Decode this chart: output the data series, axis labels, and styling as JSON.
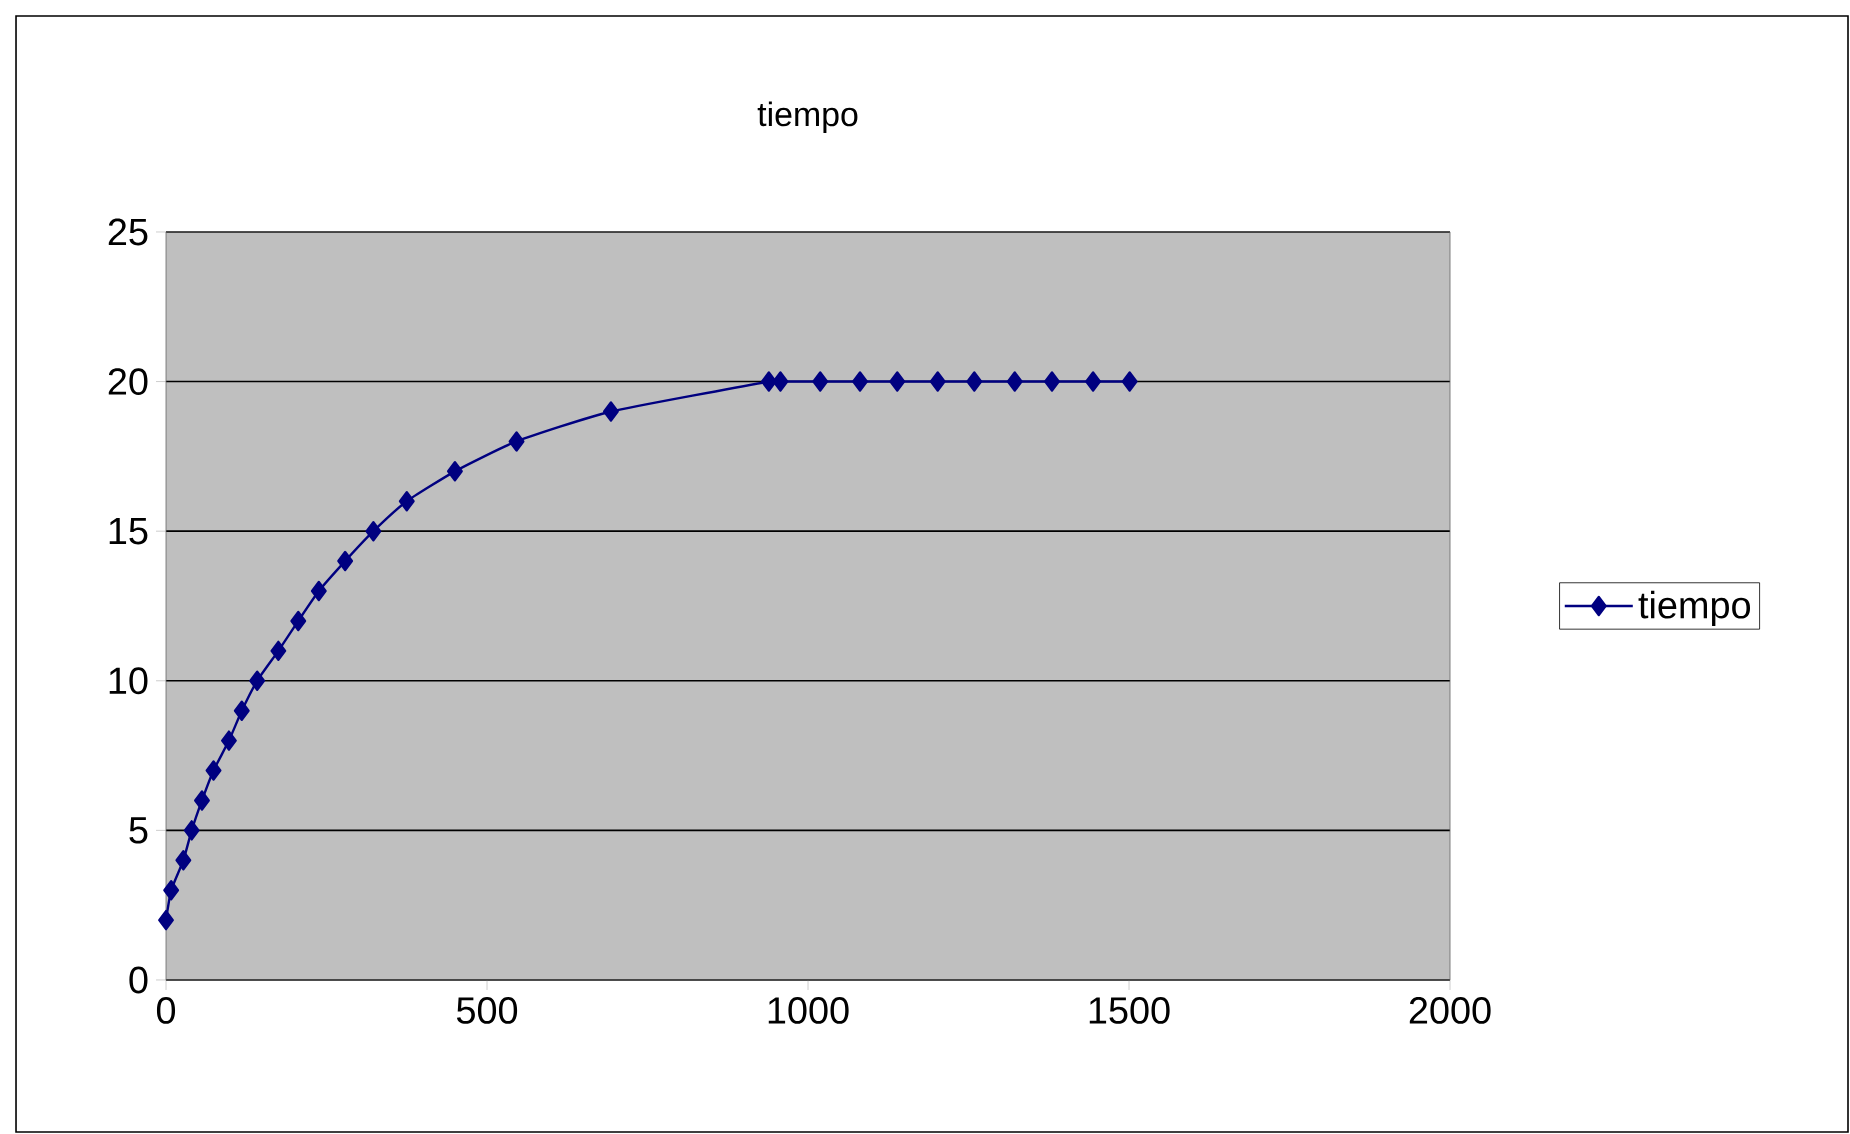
{
  "chart_data": {
    "type": "line",
    "title": "tiempo",
    "x": [
      0,
      8,
      27,
      40,
      56,
      74,
      98,
      118,
      142,
      175,
      206,
      238,
      279,
      323,
      375,
      450,
      546,
      693,
      939,
      957,
      1019,
      1081,
      1139,
      1202,
      1259,
      1322,
      1380,
      1444,
      1501
    ],
    "series": [
      {
        "name": "tiempo",
        "color": "#000080",
        "values": [
          2,
          3,
          4,
          5,
          6,
          7,
          8,
          9,
          10,
          11,
          12,
          13,
          14,
          15,
          16,
          17,
          18,
          19,
          20,
          20,
          20,
          20,
          20,
          20,
          20,
          20,
          20,
          20,
          20
        ]
      }
    ],
    "xlim": [
      0,
      2000
    ],
    "xticks": [
      0,
      500,
      1000,
      1500,
      2000
    ],
    "ylim": [
      0,
      25
    ],
    "yticks": [
      0,
      5,
      10,
      15,
      20,
      25
    ],
    "grid": "y",
    "legend": "right",
    "marker": "diamond",
    "line_style": "solid"
  }
}
